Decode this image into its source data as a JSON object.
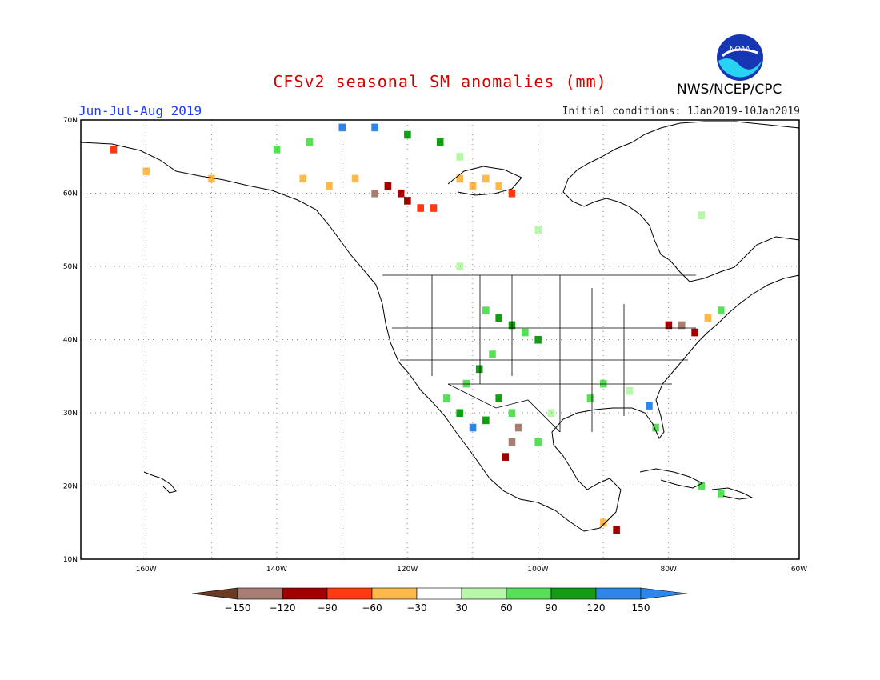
{
  "title": "CFSv2 seasonal SM anomalies (mm)",
  "agency": "NWS/NCEP/CPC",
  "logo_text": "NOAA",
  "season": "Jun-Jul-Aug 2019",
  "initial_conditions": "Initial conditions: 1Jan2019-10Jan2019",
  "map": {
    "lon_range": [
      -170,
      -60
    ],
    "lat_range": [
      10,
      70
    ],
    "grid": true,
    "lat_ticks": [
      "10N",
      "20N",
      "30N",
      "40N",
      "50N",
      "60N",
      "70N"
    ],
    "lon_ticks": [
      "160W",
      "140W",
      "120W",
      "100W",
      "80W",
      "60W"
    ]
  },
  "legend": {
    "labels": [
      "-150",
      "-120",
      "-90",
      "-60",
      "-30",
      "30",
      "60",
      "90",
      "120",
      "150"
    ],
    "colors": [
      "#6b3a24",
      "#a87e72",
      "#a00000",
      "#ff3a10",
      "#ffb84a",
      "#ffffff",
      "#b6f7a8",
      "#55e055",
      "#129d12",
      "#2d86ea",
      "#2d86ea"
    ],
    "low_arrow_color": "#6b3a24",
    "high_arrow_color": "#2d86ea"
  },
  "chart_data": {
    "type": "heatmap",
    "units": "mm",
    "color_categories": [
      "<-150",
      "-150 to -120",
      "-120 to -90",
      "-90 to -60",
      "-60 to -30",
      "-30 to 30",
      "30 to 60",
      "60 to 90",
      "90 to 120",
      "120 to 150",
      ">150"
    ],
    "cells_note": "approximate anomaly values by lon/lat",
    "cells": [
      {
        "lon": -125,
        "lat": 60,
        "v": -130
      },
      {
        "lon": -123,
        "lat": 61,
        "v": -110
      },
      {
        "lon": -121,
        "lat": 60,
        "v": -100
      },
      {
        "lon": -120,
        "lat": 59,
        "v": -95
      },
      {
        "lon": -118,
        "lat": 58,
        "v": -70
      },
      {
        "lon": -116,
        "lat": 58,
        "v": -80
      },
      {
        "lon": -112,
        "lat": 62,
        "v": -45
      },
      {
        "lon": -110,
        "lat": 61,
        "v": -40
      },
      {
        "lon": -108,
        "lat": 62,
        "v": -45
      },
      {
        "lon": -106,
        "lat": 61,
        "v": -40
      },
      {
        "lon": -104,
        "lat": 60,
        "v": -70
      },
      {
        "lon": -136,
        "lat": 62,
        "v": -40
      },
      {
        "lon": -132,
        "lat": 61,
        "v": -35
      },
      {
        "lon": -128,
        "lat": 62,
        "v": -40
      },
      {
        "lon": -165,
        "lat": 66,
        "v": -70
      },
      {
        "lon": -160,
        "lat": 63,
        "v": -40
      },
      {
        "lon": -150,
        "lat": 62,
        "v": -35
      },
      {
        "lon": -140,
        "lat": 66,
        "v": 70
      },
      {
        "lon": -135,
        "lat": 67,
        "v": 80
      },
      {
        "lon": -130,
        "lat": 69,
        "v": 130
      },
      {
        "lon": -125,
        "lat": 69,
        "v": 140
      },
      {
        "lon": -120,
        "lat": 68,
        "v": 100
      },
      {
        "lon": -115,
        "lat": 67,
        "v": 110
      },
      {
        "lon": -112,
        "lat": 65,
        "v": 40
      },
      {
        "lon": -108,
        "lat": 44,
        "v": 70
      },
      {
        "lon": -106,
        "lat": 43,
        "v": 100
      },
      {
        "lon": -104,
        "lat": 42,
        "v": 110
      },
      {
        "lon": -102,
        "lat": 41,
        "v": 80
      },
      {
        "lon": -100,
        "lat": 40,
        "v": 100
      },
      {
        "lon": -107,
        "lat": 38,
        "v": 80
      },
      {
        "lon": -109,
        "lat": 36,
        "v": 90
      },
      {
        "lon": -111,
        "lat": 34,
        "v": 70
      },
      {
        "lon": -106,
        "lat": 32,
        "v": 110
      },
      {
        "lon": -104,
        "lat": 30,
        "v": 80
      },
      {
        "lon": -108,
        "lat": 29,
        "v": 100
      },
      {
        "lon": -110,
        "lat": 28,
        "v": 125
      },
      {
        "lon": -112,
        "lat": 30,
        "v": 90
      },
      {
        "lon": -114,
        "lat": 32,
        "v": 60
      },
      {
        "lon": -104,
        "lat": 26,
        "v": -130
      },
      {
        "lon": -105,
        "lat": 24,
        "v": -110
      },
      {
        "lon": -103,
        "lat": 28,
        "v": -140
      },
      {
        "lon": -100,
        "lat": 26,
        "v": 60
      },
      {
        "lon": -98,
        "lat": 30,
        "v": 40
      },
      {
        "lon": -92,
        "lat": 32,
        "v": 80
      },
      {
        "lon": -90,
        "lat": 34,
        "v": 70
      },
      {
        "lon": -86,
        "lat": 33,
        "v": 40
      },
      {
        "lon": -83,
        "lat": 31,
        "v": 130
      },
      {
        "lon": -82,
        "lat": 28,
        "v": 70
      },
      {
        "lon": -80,
        "lat": 42,
        "v": -100
      },
      {
        "lon": -78,
        "lat": 42,
        "v": -140
      },
      {
        "lon": -76,
        "lat": 41,
        "v": -120
      },
      {
        "lon": -74,
        "lat": 43,
        "v": -50
      },
      {
        "lon": -72,
        "lat": 44,
        "v": 60
      },
      {
        "lon": -75,
        "lat": 20,
        "v": 80
      },
      {
        "lon": -72,
        "lat": 19,
        "v": 60
      },
      {
        "lon": -90,
        "lat": 15,
        "v": -50
      },
      {
        "lon": -88,
        "lat": 14,
        "v": -100
      },
      {
        "lon": -112,
        "lat": 50,
        "v": 40
      },
      {
        "lon": -100,
        "lat": 55,
        "v": 40
      },
      {
        "lon": -75,
        "lat": 57,
        "v": 40
      }
    ]
  }
}
